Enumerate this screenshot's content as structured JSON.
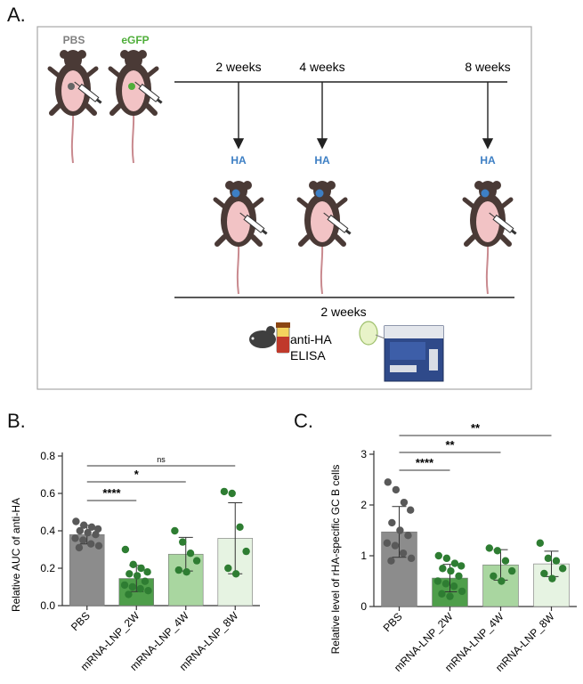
{
  "panel_a": {
    "letter": "A.",
    "labels": {
      "pbs": "PBS",
      "egfp": "eGFP",
      "t2": "2 weeks",
      "t4": "4 weeks",
      "t8": "8 weeks",
      "ha": "HA",
      "after": "2 weeks",
      "assay_line1": "anti-HA",
      "assay_line2": "ELISA"
    },
    "colors": {
      "pbs_label": "#7f7f7f",
      "egfp_label": "#4fae3a",
      "ha_label": "#3d7fc4"
    }
  },
  "chart_data": [
    {
      "panel": "B.",
      "type": "bar",
      "ylabel": "Relative AUC of anti-HA",
      "xlabel": "",
      "ylim": [
        0,
        0.8
      ],
      "yticks": [
        "0.0",
        "0.2",
        "0.4",
        "0.6",
        "0.8"
      ],
      "categories": [
        "PBS",
        "mRNA-LNP_2W",
        "mRNA-LNP_4W",
        "mRNA-LNP_8W"
      ],
      "means": [
        0.38,
        0.145,
        0.275,
        0.36
      ],
      "sd": [
        0.05,
        0.07,
        0.09,
        0.19
      ],
      "points": [
        [
          0.45,
          0.43,
          0.42,
          0.41,
          0.4,
          0.39,
          0.38,
          0.36,
          0.35,
          0.33,
          0.32,
          0.31
        ],
        [
          0.3,
          0.22,
          0.2,
          0.18,
          0.17,
          0.16,
          0.13,
          0.11,
          0.1,
          0.09,
          0.08,
          0.06
        ],
        [
          0.4,
          0.34,
          0.28,
          0.24,
          0.19,
          0.18
        ],
        [
          0.61,
          0.6,
          0.42,
          0.29,
          0.2,
          0.17
        ]
      ],
      "bar_colors": [
        "#8c8c8c",
        "#4e9e4a",
        "#a9d6a0",
        "#e6f3e2"
      ],
      "point_colors": [
        "#595959",
        "#2e7d32",
        "#2e7d32",
        "#2e7d32"
      ],
      "significance": [
        {
          "from": 0,
          "to": 3,
          "label": "ns"
        },
        {
          "from": 0,
          "to": 2,
          "label": "*"
        },
        {
          "from": 0,
          "to": 1,
          "label": "****"
        }
      ]
    },
    {
      "panel": "C.",
      "type": "bar",
      "ylabel": "Relative level of rHA-specific GC B cells",
      "xlabel": "",
      "ylim": [
        0,
        3
      ],
      "yticks": [
        "0",
        "1",
        "2",
        "3"
      ],
      "categories": [
        "PBS",
        "mRNA-LNP_2W",
        "mRNA-LNP_4W",
        "mRNA-LNP_8W"
      ],
      "means": [
        1.47,
        0.56,
        0.82,
        0.84
      ],
      "sd": [
        0.5,
        0.27,
        0.3,
        0.25
      ],
      "points": [
        [
          2.45,
          2.3,
          2.05,
          1.9,
          1.65,
          1.5,
          1.4,
          1.25,
          1.2,
          1.05,
          0.95,
          0.9
        ],
        [
          1.0,
          0.95,
          0.85,
          0.8,
          0.75,
          0.7,
          0.6,
          0.5,
          0.45,
          0.4,
          0.3,
          0.25,
          0.2
        ],
        [
          1.15,
          1.1,
          0.9,
          0.7,
          0.6,
          0.5
        ],
        [
          1.25,
          0.95,
          0.9,
          0.75,
          0.65,
          0.55
        ]
      ],
      "bar_colors": [
        "#8c8c8c",
        "#4e9e4a",
        "#a9d6a0",
        "#e6f3e2"
      ],
      "point_colors": [
        "#595959",
        "#2e7d32",
        "#2e7d32",
        "#2e7d32"
      ],
      "significance": [
        {
          "from": 0,
          "to": 3,
          "label": "**"
        },
        {
          "from": 0,
          "to": 2,
          "label": "**"
        },
        {
          "from": 0,
          "to": 1,
          "label": "****"
        }
      ]
    }
  ]
}
